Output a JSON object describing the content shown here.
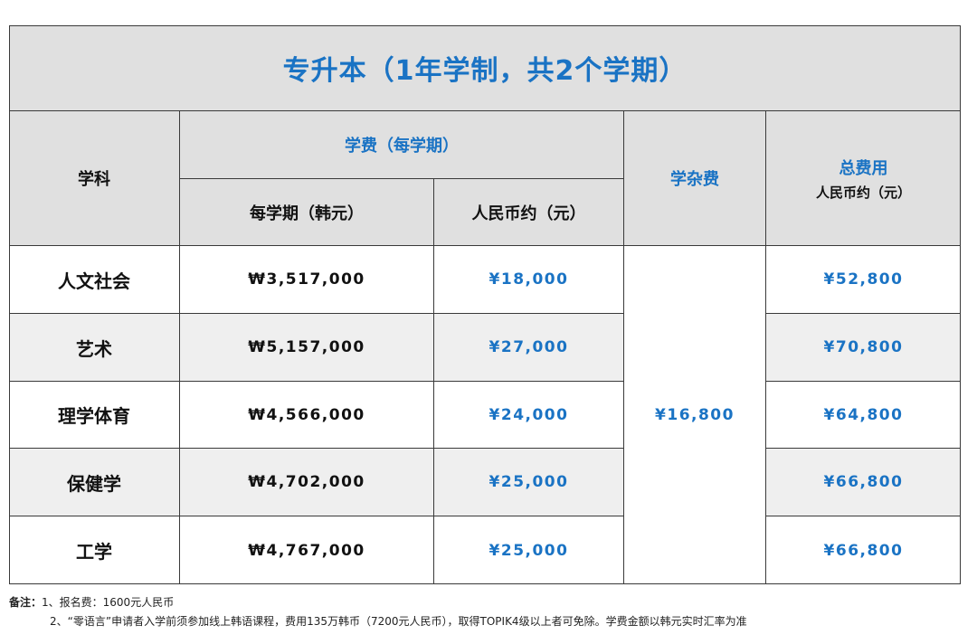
{
  "title": "专升本（1年学制，共2个学期）",
  "headers": {
    "subject": "学科",
    "tuition_group": "学费（每学期）",
    "tuition_krw": "每学期（韩元）",
    "tuition_cny": "人民币约（元）",
    "misc_fee": "学杂费",
    "total_label": "总费用",
    "total_sub": "人民币约（元）"
  },
  "rows": [
    {
      "subject": "人文社会",
      "krw": "₩3,517,000",
      "cny": "¥18,000",
      "total": "¥52,800"
    },
    {
      "subject": "艺术",
      "krw": "₩5,157,000",
      "cny": "¥27,000",
      "total": "¥70,800"
    },
    {
      "subject": "理学体育",
      "krw": "₩4,566,000",
      "cny": "¥24,000",
      "total": "¥64,800"
    },
    {
      "subject": "保健学",
      "krw": "₩4,702,000",
      "cny": "¥25,000",
      "total": "¥66,800"
    },
    {
      "subject": "工学",
      "krw": "₩4,767,000",
      "cny": "¥25,000",
      "total": "¥66,800"
    }
  ],
  "misc_fee_value": "¥16,800",
  "notes": {
    "label": "备注：",
    "line1": "1、报名费：1600元人民币",
    "line2": "2、“零语言”申请者入学前须参加线上韩语课程，费用135万韩币（7200元人民币），取得TOPIK4级以上者可免除。学费金额以韩元实时汇率为准"
  },
  "colors": {
    "accent_blue": "#1a73c4",
    "header_gray": "#e0e0e0",
    "row_gray": "#efefef",
    "border": "#3a3a3a"
  }
}
